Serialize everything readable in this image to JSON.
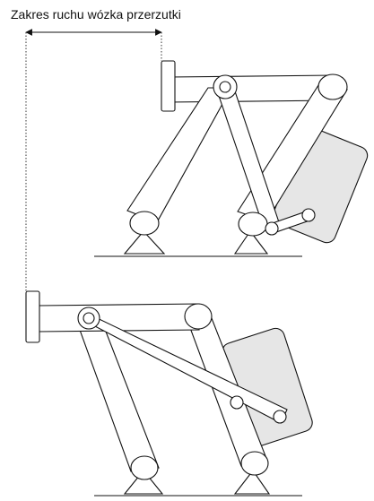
{
  "caption": "Zakres ruchu wózka przerzutki"
}
